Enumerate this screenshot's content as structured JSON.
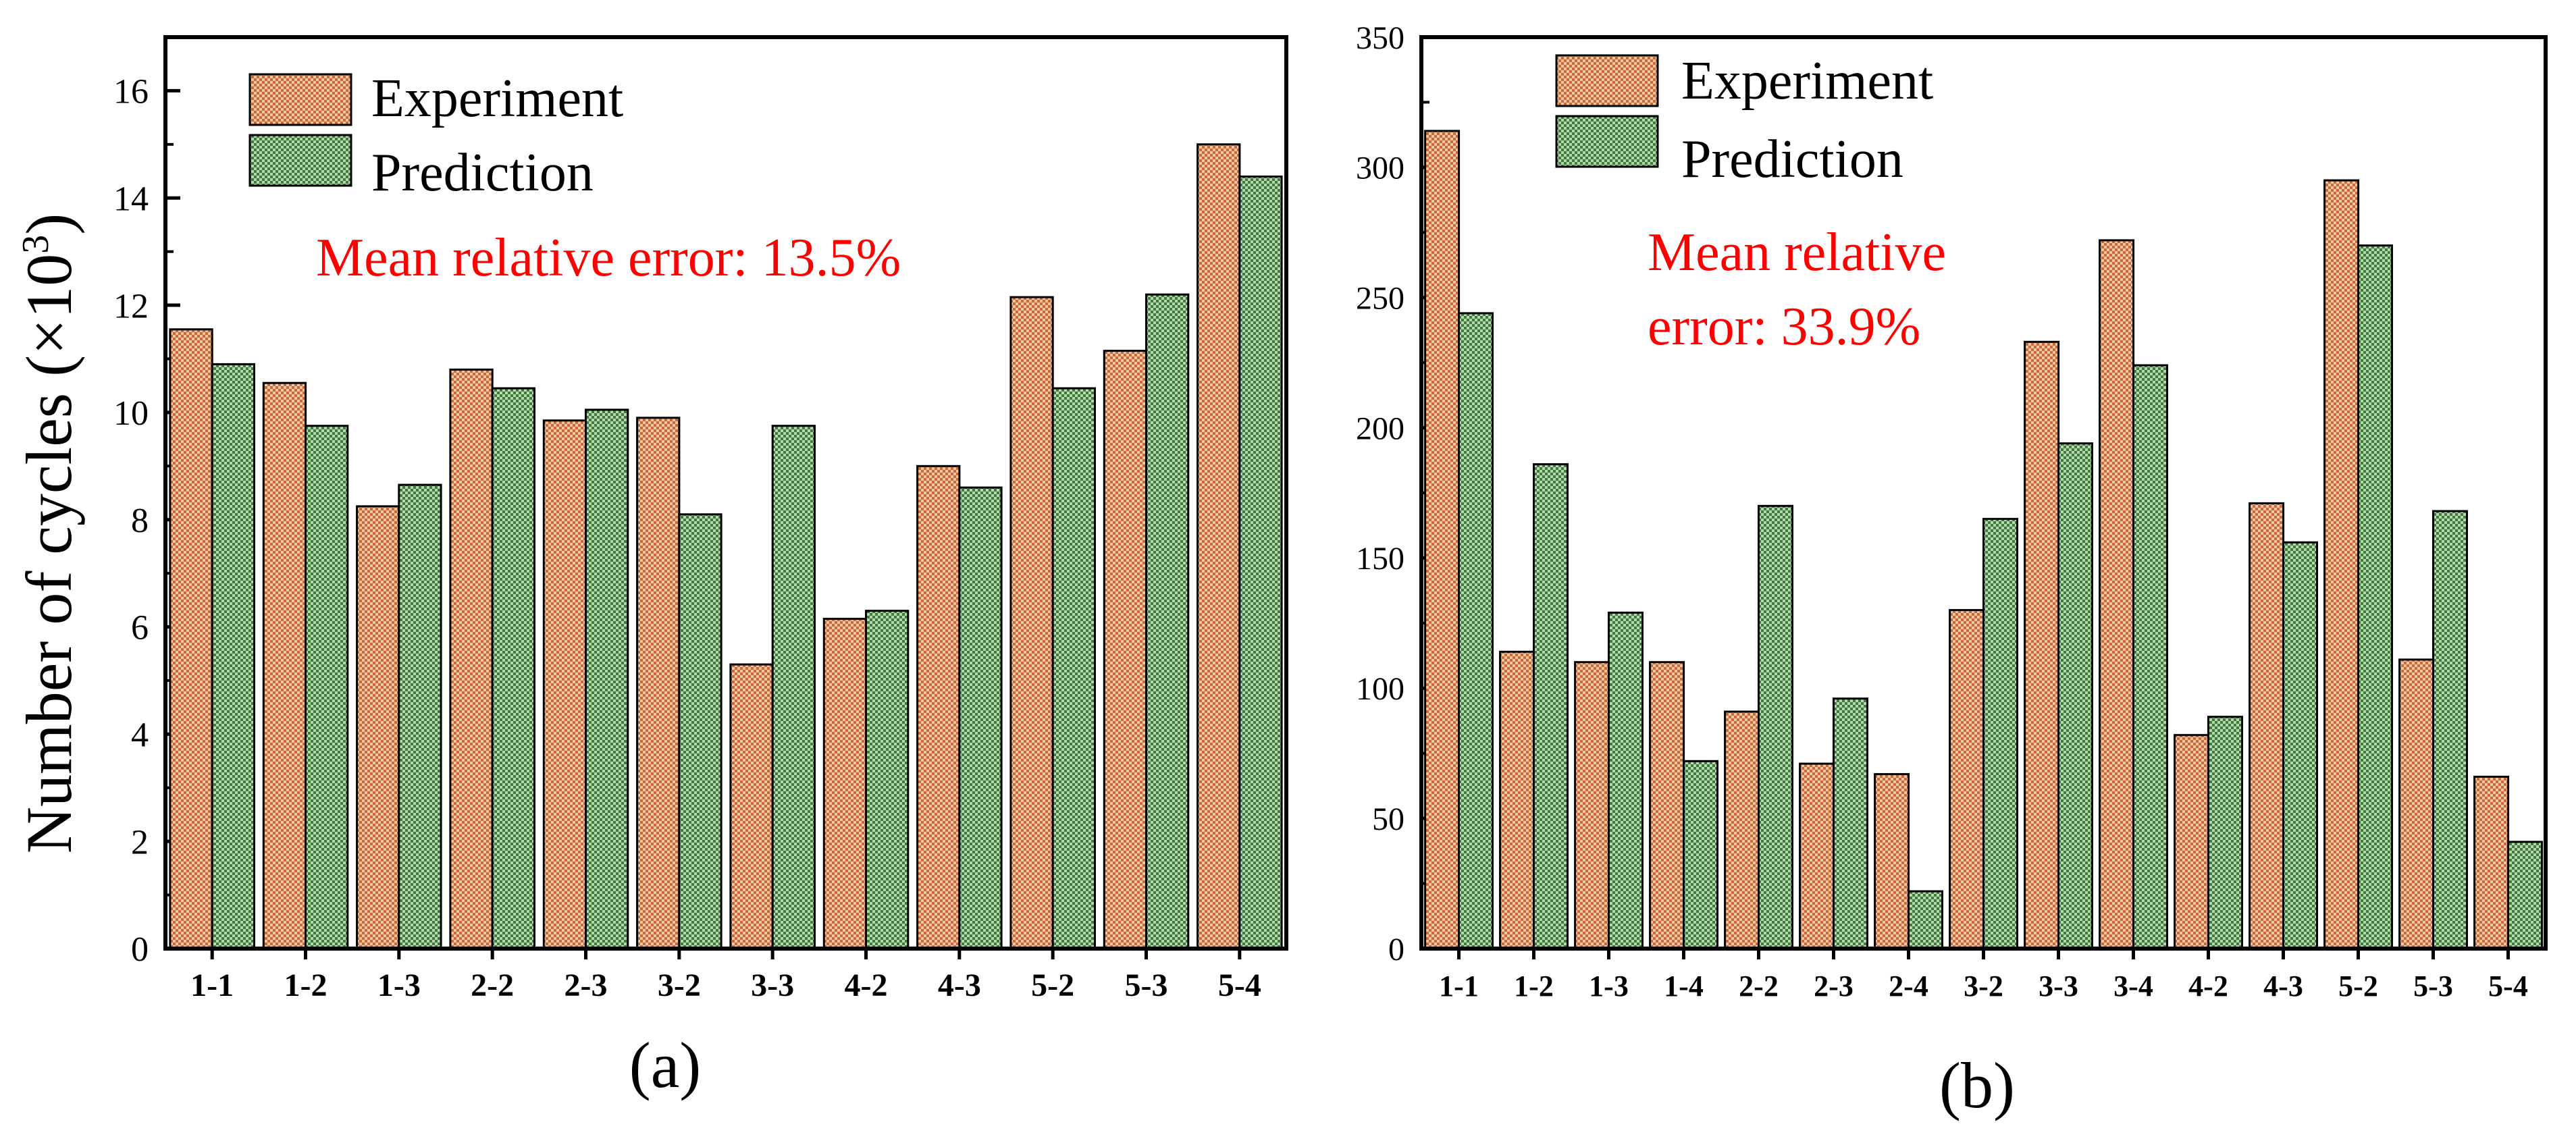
{
  "figure": {
    "ylabel_main": "Number of cycles (",
    "ylabel_mult": "×10",
    "ylabel_exp": "3",
    "ylabel_close": ")"
  },
  "colors": {
    "experiment": "#c86a3c",
    "experiment_light": "#f2c6a0",
    "prediction": "#3f7a45",
    "prediction_light": "#b8d9a8",
    "annotation": "#ff0000",
    "axis": "#000000"
  },
  "chart_data": [
    {
      "type": "bar",
      "panel_label": "(a)",
      "categories": [
        "1-1",
        "1-2",
        "1-3",
        "2-2",
        "2-3",
        "3-2",
        "3-3",
        "4-2",
        "4-3",
        "5-2",
        "5-3",
        "5-4"
      ],
      "series": [
        {
          "name": "Experiment",
          "values": [
            11.55,
            10.55,
            8.25,
            10.8,
            9.85,
            9.9,
            5.3,
            6.15,
            9.0,
            12.15,
            11.15,
            15.0
          ]
        },
        {
          "name": "Prediction",
          "values": [
            10.9,
            9.75,
            8.65,
            10.45,
            10.05,
            8.1,
            9.75,
            6.3,
            8.6,
            10.45,
            12.2,
            14.4
          ]
        }
      ],
      "ylim": [
        0,
        17
      ],
      "yticks": [
        0,
        2,
        4,
        6,
        8,
        10,
        12,
        14,
        16
      ],
      "annotation": [
        "Mean relative error: 13.5%"
      ],
      "legend_position": "top-left"
    },
    {
      "type": "bar",
      "panel_label": "(b)",
      "categories": [
        "1-1",
        "1-2",
        "1-3",
        "1-4",
        "2-2",
        "2-3",
        "2-4",
        "3-2",
        "3-3",
        "3-4",
        "4-2",
        "4-3",
        "5-2",
        "5-3",
        "5-4"
      ],
      "series": [
        {
          "name": "Experiment",
          "values": [
            314,
            114,
            110,
            110,
            91,
            71,
            67,
            130,
            233,
            272,
            82,
            171,
            295,
            111,
            66
          ]
        },
        {
          "name": "Prediction",
          "values": [
            244,
            186,
            129,
            72,
            170,
            96,
            22,
            165,
            194,
            224,
            89,
            156,
            270,
            168,
            41
          ]
        }
      ],
      "ylim": [
        0,
        350
      ],
      "yticks": [
        0,
        50,
        100,
        150,
        200,
        250,
        300,
        350
      ],
      "annotation": [
        "Mean relative",
        "error: 33.9%"
      ],
      "legend_position": "top-left"
    }
  ]
}
